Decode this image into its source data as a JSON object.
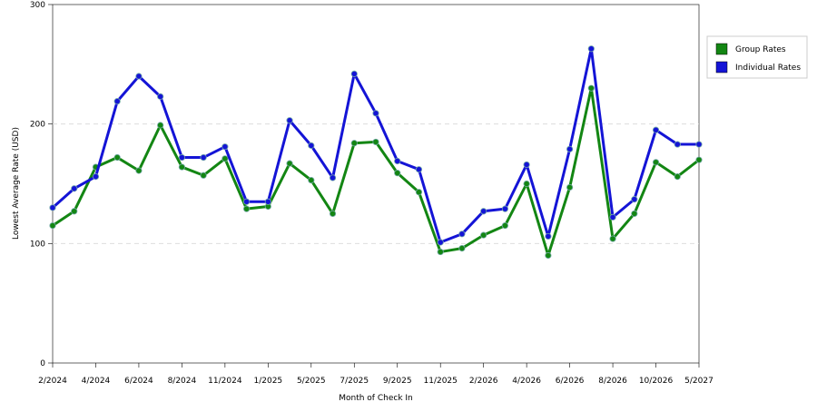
{
  "chart_data": {
    "type": "line",
    "x_label": "Month of Check In",
    "y_label": "Lowest Average Rate (USD)",
    "categories": [
      "2/2024",
      null,
      "4/2024",
      null,
      "6/2024",
      null,
      "8/2024",
      null,
      "11/2024",
      null,
      "1/2025",
      null,
      "5/2025",
      null,
      "7/2025",
      null,
      "9/2025",
      null,
      "11/2025",
      null,
      "2/2026",
      null,
      "4/2026",
      null,
      "6/2026",
      null,
      "8/2026",
      null,
      "10/2026",
      null,
      "5/2027"
    ],
    "series": [
      {
        "name": "Group Rates",
        "color": "#138613",
        "values": [
          115,
          127,
          164,
          172,
          161,
          199,
          164,
          157,
          171,
          129,
          131,
          167,
          153,
          125,
          184,
          185,
          159,
          143,
          93,
          96,
          107,
          115,
          150,
          90,
          147,
          230,
          104,
          125,
          168,
          156,
          170
        ]
      },
      {
        "name": "Individual Rates",
        "color": "#1414d6",
        "values": [
          130,
          146,
          156,
          219,
          240,
          223,
          172,
          172,
          181,
          135,
          135,
          203,
          182,
          155,
          242,
          209,
          169,
          162,
          101,
          108,
          127,
          129,
          166,
          106,
          179,
          263,
          122,
          137,
          195,
          183,
          183
        ]
      }
    ],
    "ylim": [
      0,
      300
    ],
    "yticks": [
      0,
      100,
      200,
      300
    ],
    "grid": true,
    "legend": "right"
  }
}
